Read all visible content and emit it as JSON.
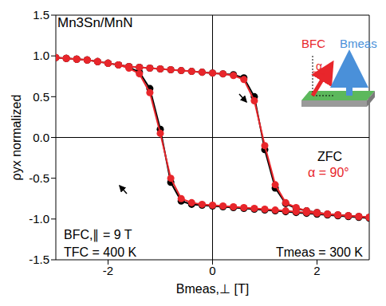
{
  "chart_data": {
    "type": "scatter",
    "x_label": "Bmeas,⊥ [T]",
    "y_label": "ρyx normalized",
    "x": [
      3.0,
      2.8,
      2.6,
      2.4,
      2.2,
      2.0,
      1.8,
      1.6,
      1.4,
      1.2,
      1.0,
      0.8,
      0.6,
      0.4,
      0.2,
      0.0,
      -0.2,
      -0.4,
      -0.6,
      -0.8,
      -1.0,
      -1.2,
      -1.4,
      -1.6,
      -1.8,
      -2.0,
      -2.2,
      -2.4,
      -2.6,
      -2.8,
      -3.0,
      -2.8,
      -2.6,
      -2.4,
      -2.2,
      -2.0,
      -1.8,
      -1.6,
      -1.4,
      -1.2,
      -1.0,
      -0.8,
      -0.6,
      -0.4,
      -0.2,
      0.0,
      0.2,
      0.4,
      0.6,
      0.8,
      1.0,
      1.2,
      1.4,
      1.6,
      1.8,
      2.0,
      2.2,
      2.4,
      2.6,
      2.8,
      3.0
    ],
    "series": [
      {
        "name": "ZFC",
        "color": "#000000",
        "marker": "circle",
        "line_style": "solid",
        "values": [
          -0.99,
          -0.98,
          -0.97,
          -0.96,
          -0.95,
          -0.94,
          -0.93,
          -0.92,
          -0.91,
          -0.9,
          -0.89,
          -0.88,
          -0.87,
          -0.86,
          -0.85,
          -0.84,
          -0.83,
          -0.82,
          -0.78,
          -0.55,
          0.1,
          0.6,
          0.8,
          0.86,
          0.89,
          0.91,
          0.93,
          0.95,
          0.96,
          0.97,
          0.98,
          0.97,
          0.96,
          0.95,
          0.93,
          0.91,
          0.89,
          0.87,
          0.86,
          0.85,
          0.84,
          0.83,
          0.82,
          0.81,
          0.8,
          0.79,
          0.78,
          0.77,
          0.73,
          0.5,
          -0.15,
          -0.62,
          -0.81,
          -0.87,
          -0.9,
          -0.92,
          -0.94,
          -0.95,
          -0.96,
          -0.97,
          -0.98
        ]
      },
      {
        "name": "α = 90°",
        "color": "#e8262b",
        "marker": "circle",
        "line_style": "solid",
        "values": [
          -0.98,
          -0.97,
          -0.96,
          -0.95,
          -0.94,
          -0.93,
          -0.92,
          -0.91,
          -0.9,
          -0.89,
          -0.88,
          -0.87,
          -0.86,
          -0.85,
          -0.84,
          -0.83,
          -0.82,
          -0.8,
          -0.75,
          -0.5,
          0.05,
          0.55,
          0.78,
          0.85,
          0.89,
          0.91,
          0.93,
          0.95,
          0.96,
          0.97,
          0.98,
          0.97,
          0.96,
          0.95,
          0.93,
          0.91,
          0.89,
          0.87,
          0.86,
          0.85,
          0.84,
          0.83,
          0.82,
          0.81,
          0.8,
          0.79,
          0.78,
          0.76,
          0.71,
          0.45,
          -0.1,
          -0.58,
          -0.8,
          -0.86,
          -0.9,
          -0.92,
          -0.94,
          -0.95,
          -0.96,
          -0.97,
          -0.98
        ]
      }
    ],
    "xlim": [
      -3,
      3
    ],
    "xticks": [
      -2,
      0,
      2
    ],
    "ylim": [
      -1.5,
      1.5
    ],
    "yticks": [
      {
        "value": -1.5,
        "label": "-1.5"
      },
      {
        "value": -1.0,
        "label": "-1.0"
      },
      {
        "value": -0.5,
        "label": "-0.5"
      },
      {
        "value": 0,
        "label": "0.0"
      },
      0.5,
      {
        "value": 1.0,
        "label": "1.0"
      },
      1.5
    ],
    "grid": false,
    "annotations": {
      "sample": "Mn3Sn/MnN",
      "field_cooling": "BFC,∥ = 9 T",
      "cooling_temperature": "TFC = 400 K",
      "measurement_temperature": "Tmeas = 300 K",
      "inset_cooling_field": "BFC",
      "inset_measurement_field": "Bmeas",
      "inset_angle": "α"
    }
  }
}
